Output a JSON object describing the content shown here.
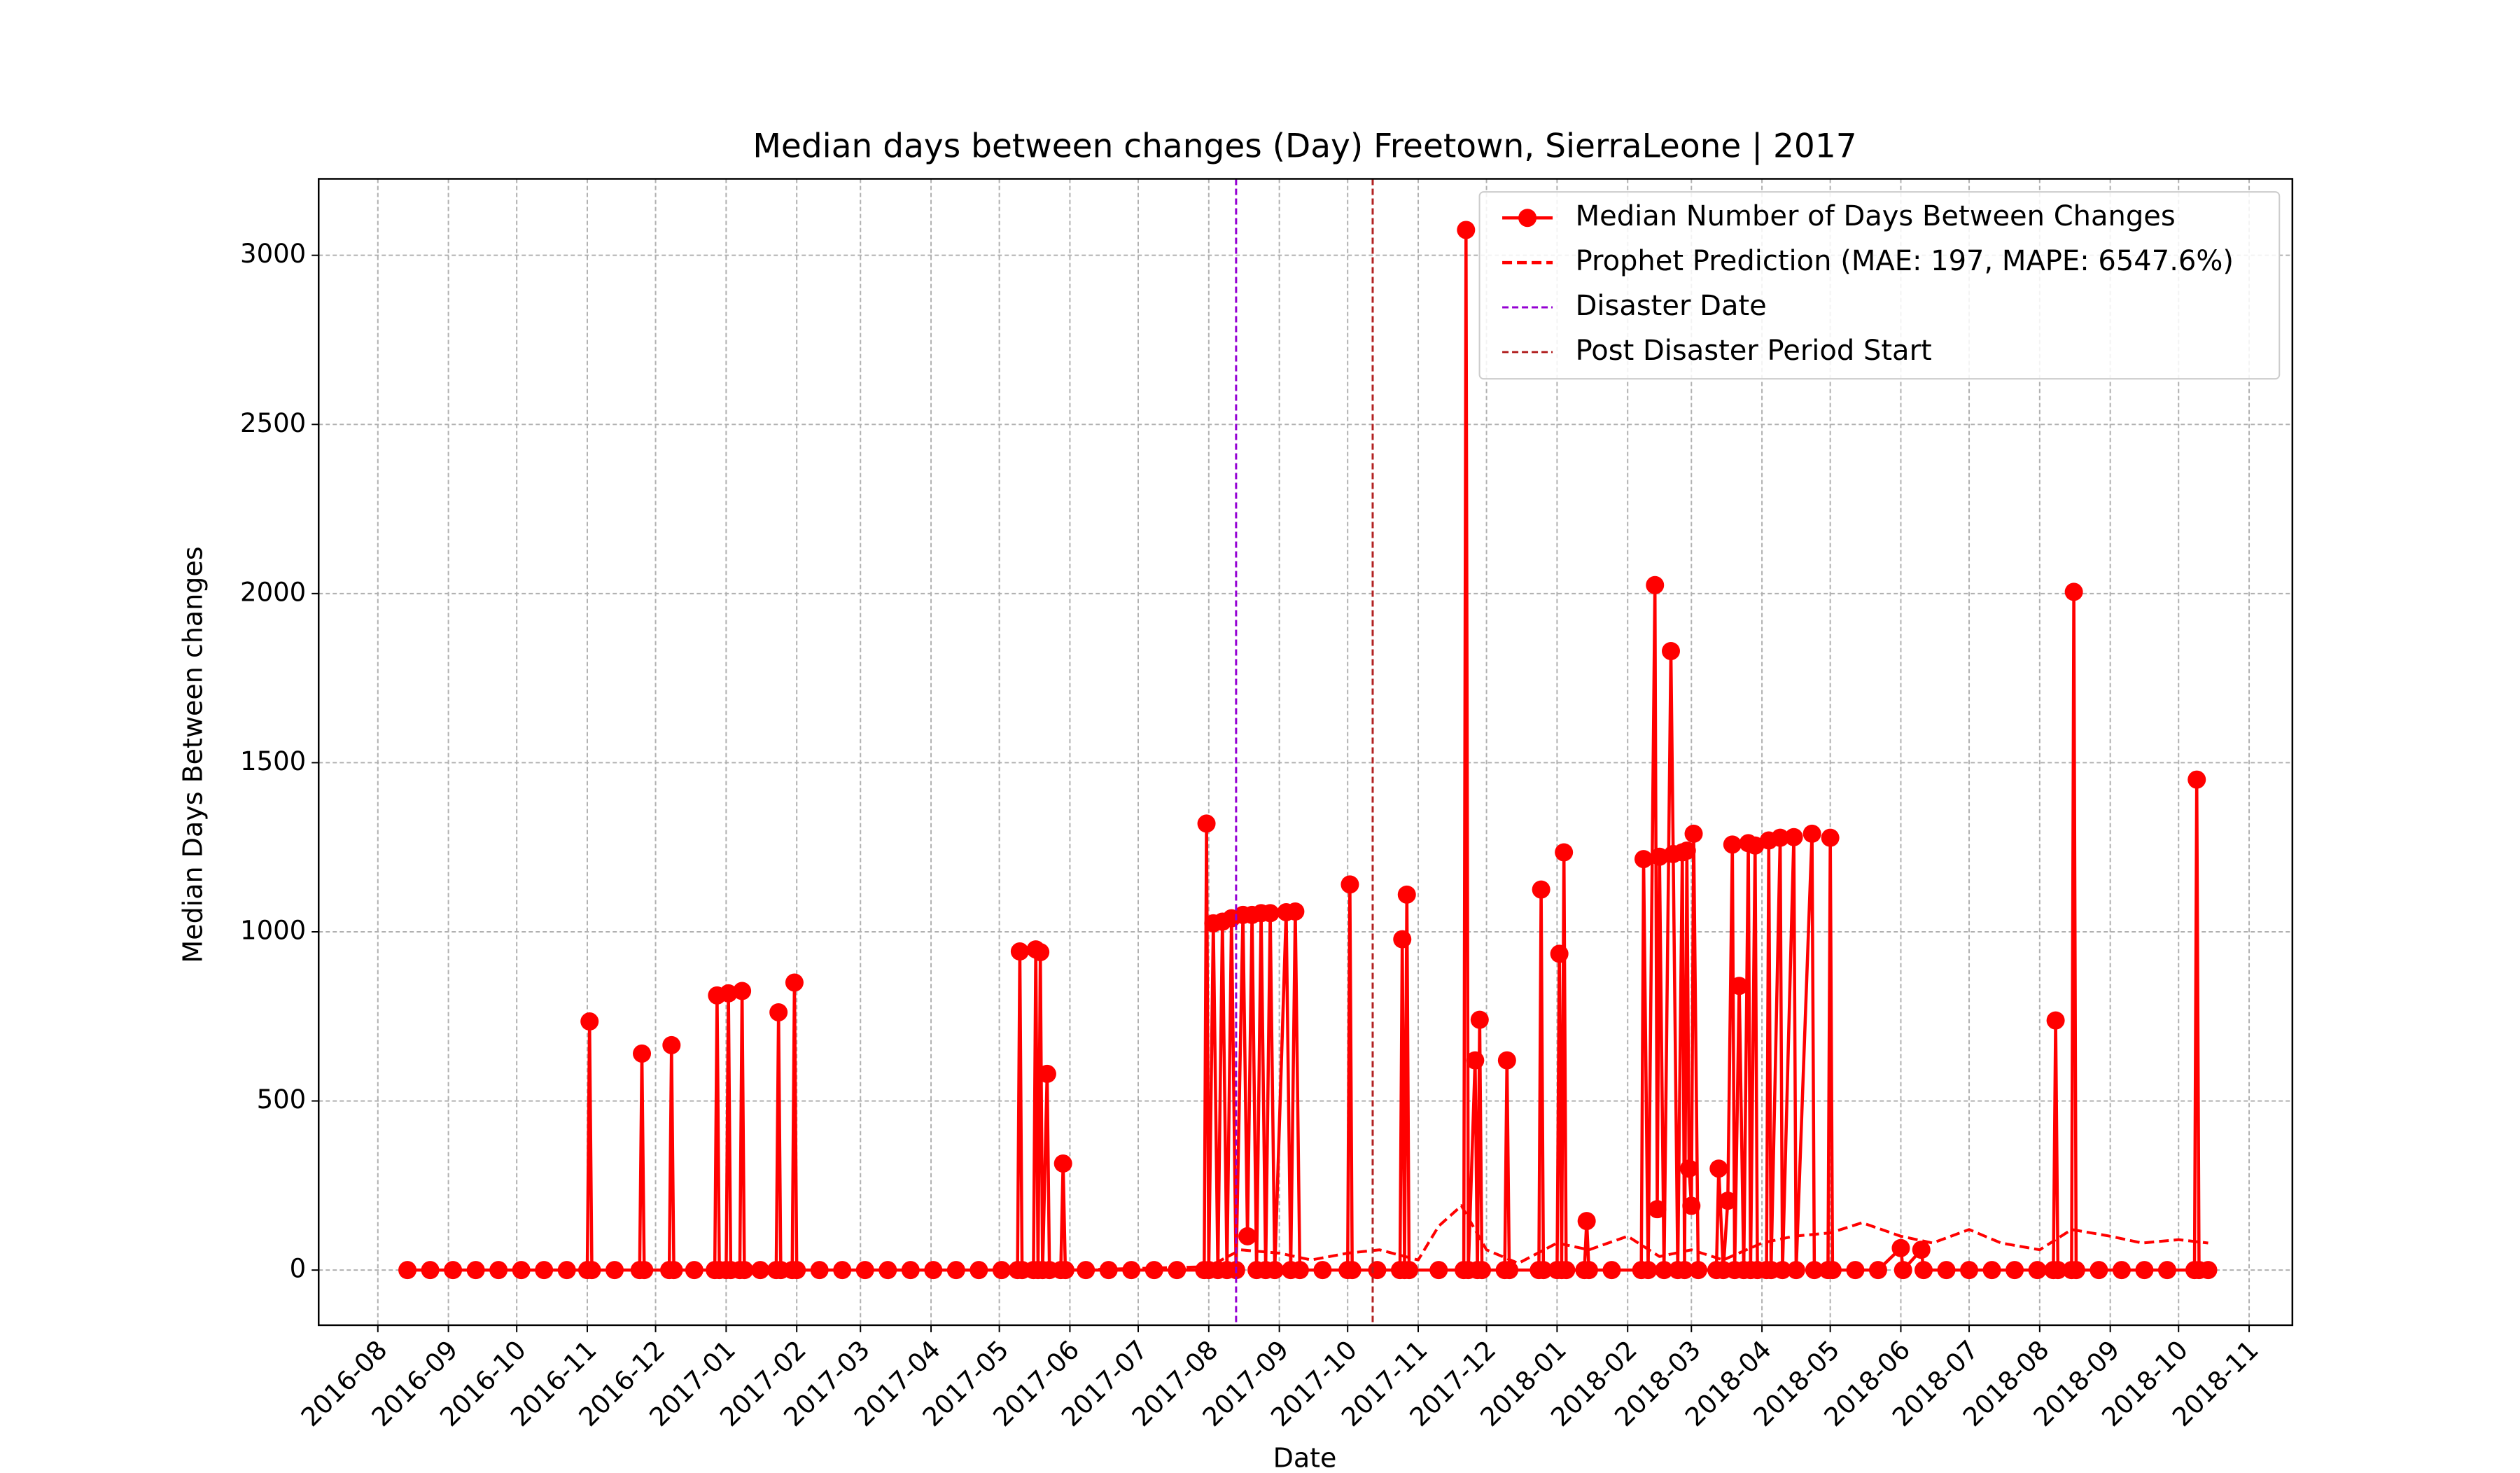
{
  "chart_data": {
    "type": "line",
    "title": "Median days between changes (Day) Freetown, SierraLeone | 2017",
    "x_label": "Date",
    "y_label": "Median Days Between changes",
    "xlim": [
      "2016-07-06",
      "2018-11-20"
    ],
    "ylim": [
      -163,
      3226
    ],
    "yticks": [
      0,
      500,
      1000,
      1500,
      2000,
      2500,
      3000
    ],
    "xticks": [
      {
        "value": "2016-08-01",
        "label": "2016-08"
      },
      {
        "value": "2016-09-01",
        "label": "2016-09"
      },
      {
        "value": "2016-10-01",
        "label": "2016-10"
      },
      {
        "value": "2016-11-01",
        "label": "2016-11"
      },
      {
        "value": "2016-12-01",
        "label": "2016-12"
      },
      {
        "value": "2017-01-01",
        "label": "2017-01"
      },
      {
        "value": "2017-02-01",
        "label": "2017-02"
      },
      {
        "value": "2017-03-01",
        "label": "2017-03"
      },
      {
        "value": "2017-04-01",
        "label": "2017-04"
      },
      {
        "value": "2017-05-01",
        "label": "2017-05"
      },
      {
        "value": "2017-06-01",
        "label": "2017-06"
      },
      {
        "value": "2017-07-01",
        "label": "2017-07"
      },
      {
        "value": "2017-08-01",
        "label": "2017-08"
      },
      {
        "value": "2017-09-01",
        "label": "2017-09"
      },
      {
        "value": "2017-10-01",
        "label": "2017-10"
      },
      {
        "value": "2017-11-01",
        "label": "2017-11"
      },
      {
        "value": "2017-12-01",
        "label": "2017-12"
      },
      {
        "value": "2018-01-01",
        "label": "2018-01"
      },
      {
        "value": "2018-02-01",
        "label": "2018-02"
      },
      {
        "value": "2018-03-01",
        "label": "2018-03"
      },
      {
        "value": "2018-04-01",
        "label": "2018-04"
      },
      {
        "value": "2018-05-01",
        "label": "2018-05"
      },
      {
        "value": "2018-06-01",
        "label": "2018-06"
      },
      {
        "value": "2018-07-01",
        "label": "2018-07"
      },
      {
        "value": "2018-08-01",
        "label": "2018-08"
      },
      {
        "value": "2018-09-01",
        "label": "2018-09"
      },
      {
        "value": "2018-10-01",
        "label": "2018-10"
      },
      {
        "value": "2018-11-01",
        "label": "2018-11"
      }
    ],
    "grid": true,
    "legend": "upper right",
    "series": [
      {
        "name": "Median Number of Days Between Changes",
        "color": "#ff0000",
        "style": "solid",
        "marker": true,
        "x": [
          "2016-08-14",
          "2016-08-24",
          "2016-09-03",
          "2016-09-13",
          "2016-09-23",
          "2016-10-03",
          "2016-10-13",
          "2016-10-23",
          "2016-11-01",
          "2016-11-02",
          "2016-11-03",
          "2016-11-13",
          "2016-11-24",
          "2016-11-25",
          "2016-11-26",
          "2016-12-07",
          "2016-12-08",
          "2016-12-09",
          "2016-12-18",
          "2016-12-27",
          "2016-12-28",
          "2016-12-29",
          "2017-01-01",
          "2017-01-02",
          "2017-01-03",
          "2017-01-07",
          "2017-01-08",
          "2017-01-09",
          "2017-01-16",
          "2017-01-23",
          "2017-01-24",
          "2017-01-25",
          "2017-01-30",
          "2017-01-31",
          "2017-02-01",
          "2017-02-11",
          "2017-02-21",
          "2017-03-03",
          "2017-03-13",
          "2017-03-23",
          "2017-04-02",
          "2017-04-12",
          "2017-04-22",
          "2017-05-02",
          "2017-05-09",
          "2017-05-10",
          "2017-05-11",
          "2017-05-16",
          "2017-05-17",
          "2017-05-18",
          "2017-05-19",
          "2017-05-20",
          "2017-05-22",
          "2017-05-23",
          "2017-05-28",
          "2017-05-29",
          "2017-05-30",
          "2017-06-08",
          "2017-06-18",
          "2017-06-28",
          "2017-07-08",
          "2017-07-18",
          "2017-07-30",
          "2017-07-31",
          "2017-08-01",
          "2017-08-03",
          "2017-08-05",
          "2017-08-07",
          "2017-08-09",
          "2017-08-11",
          "2017-08-13",
          "2017-08-16",
          "2017-08-18",
          "2017-08-20",
          "2017-08-22",
          "2017-08-24",
          "2017-08-26",
          "2017-08-28",
          "2017-08-30",
          "2017-09-04",
          "2017-09-06",
          "2017-09-08",
          "2017-09-10",
          "2017-09-20",
          "2017-10-01",
          "2017-10-02",
          "2017-10-03",
          "2017-10-14",
          "2017-10-24",
          "2017-10-25",
          "2017-10-26",
          "2017-10-27",
          "2017-10-28",
          "2017-11-10",
          "2017-11-21",
          "2017-11-22",
          "2017-11-23",
          "2017-11-26",
          "2017-11-27",
          "2017-11-28",
          "2017-11-29",
          "2017-12-09",
          "2017-12-10",
          "2017-12-11",
          "2017-12-24",
          "2017-12-25",
          "2017-12-26",
          "2018-01-01",
          "2018-01-02",
          "2018-01-03",
          "2018-01-04",
          "2018-01-05",
          "2018-01-13",
          "2018-01-14",
          "2018-01-15",
          "2018-01-25",
          "2018-02-07",
          "2018-02-08",
          "2018-02-10",
          "2018-02-13",
          "2018-02-14",
          "2018-02-15",
          "2018-02-17",
          "2018-02-20",
          "2018-02-21",
          "2018-02-23",
          "2018-02-25",
          "2018-02-26",
          "2018-02-27",
          "2018-02-28",
          "2018-03-01",
          "2018-03-02",
          "2018-03-04",
          "2018-03-12",
          "2018-03-13",
          "2018-03-15",
          "2018-03-17",
          "2018-03-19",
          "2018-03-20",
          "2018-03-22",
          "2018-03-24",
          "2018-03-26",
          "2018-03-27",
          "2018-03-29",
          "2018-03-30",
          "2018-04-03",
          "2018-04-04",
          "2018-04-05",
          "2018-04-09",
          "2018-04-10",
          "2018-04-15",
          "2018-04-16",
          "2018-04-23",
          "2018-04-24",
          "2018-04-30",
          "2018-05-01",
          "2018-05-02",
          "2018-05-12",
          "2018-05-22",
          "2018-06-01",
          "2018-06-02",
          "2018-06-10",
          "2018-06-11",
          "2018-06-21",
          "2018-07-01",
          "2018-07-11",
          "2018-07-21",
          "2018-07-31",
          "2018-08-07",
          "2018-08-08",
          "2018-08-09",
          "2018-08-15",
          "2018-08-16",
          "2018-08-17",
          "2018-08-27",
          "2018-09-06",
          "2018-09-16",
          "2018-09-26",
          "2018-10-08",
          "2018-10-09",
          "2018-10-10",
          "2018-10-14"
        ],
        "values": [
          0,
          0,
          0,
          0,
          0,
          0,
          0,
          0,
          0,
          735,
          0,
          0,
          0,
          640,
          0,
          0,
          665,
          0,
          0,
          0,
          812,
          0,
          0,
          818,
          0,
          0,
          825,
          0,
          0,
          0,
          762,
          0,
          0,
          850,
          0,
          0,
          0,
          0,
          0,
          0,
          0,
          0,
          0,
          0,
          0,
          942,
          0,
          0,
          948,
          0,
          940,
          0,
          580,
          0,
          0,
          315,
          0,
          0,
          0,
          0,
          0,
          0,
          0,
          1320,
          0,
          1025,
          0,
          1030,
          0,
          1040,
          0,
          1050,
          100,
          1050,
          0,
          1055,
          0,
          1055,
          0,
          1058,
          0,
          1060,
          0,
          0,
          0,
          1140,
          0,
          0,
          0,
          978,
          0,
          1110,
          0,
          0,
          0,
          3075,
          0,
          620,
          0,
          740,
          0,
          0,
          620,
          0,
          0,
          1125,
          0,
          0,
          935,
          0,
          1235,
          0,
          0,
          145,
          0,
          0,
          0,
          1215,
          0,
          2025,
          180,
          1222,
          0,
          1830,
          1230,
          0,
          1235,
          0,
          1240,
          300,
          190,
          1290,
          0,
          0,
          300,
          0,
          205,
          1258,
          0,
          840,
          0,
          1262,
          0,
          1255,
          0,
          0,
          1270,
          0,
          1278,
          0,
          1280,
          0,
          1290,
          0,
          0,
          1278,
          0,
          0,
          0,
          65,
          0,
          60,
          0,
          0,
          0,
          0,
          0,
          0,
          0,
          738,
          0,
          0,
          2005,
          0,
          0,
          0,
          0,
          0,
          0,
          1450,
          0,
          0
        ]
      },
      {
        "name": "Prophet Prediction (MAE: 197, MAPE: 6547.6%)",
        "color": "#ff0000",
        "style": "dashed",
        "marker": false,
        "x": [
          "2016-08-14",
          "2016-10-01",
          "2016-12-01",
          "2017-02-01",
          "2017-04-01",
          "2017-06-01",
          "2017-08-01",
          "2017-08-15",
          "2017-09-01",
          "2017-09-15",
          "2017-10-01",
          "2017-10-15",
          "2017-11-01",
          "2017-11-10",
          "2017-11-20",
          "2017-12-01",
          "2017-12-15",
          "2018-01-01",
          "2018-01-15",
          "2018-02-01",
          "2018-02-15",
          "2018-03-01",
          "2018-03-15",
          "2018-04-01",
          "2018-04-15",
          "2018-05-01",
          "2018-05-15",
          "2018-06-01",
          "2018-06-15",
          "2018-07-01",
          "2018-07-15",
          "2018-08-01",
          "2018-08-15",
          "2018-09-01",
          "2018-09-15",
          "2018-10-01",
          "2018-10-14"
        ],
        "values": [
          0,
          0,
          0,
          0,
          0,
          0,
          10,
          60,
          50,
          30,
          50,
          60,
          30,
          130,
          190,
          60,
          20,
          80,
          60,
          100,
          40,
          60,
          30,
          80,
          100,
          110,
          140,
          100,
          80,
          120,
          80,
          60,
          120,
          100,
          80,
          90,
          80
        ]
      }
    ],
    "vlines": [
      {
        "name": "Disaster Date",
        "x": "2017-08-13",
        "color": "#9400d3"
      },
      {
        "name": "Post Disaster Period Start",
        "x": "2017-10-12",
        "color": "#b22222"
      }
    ]
  }
}
